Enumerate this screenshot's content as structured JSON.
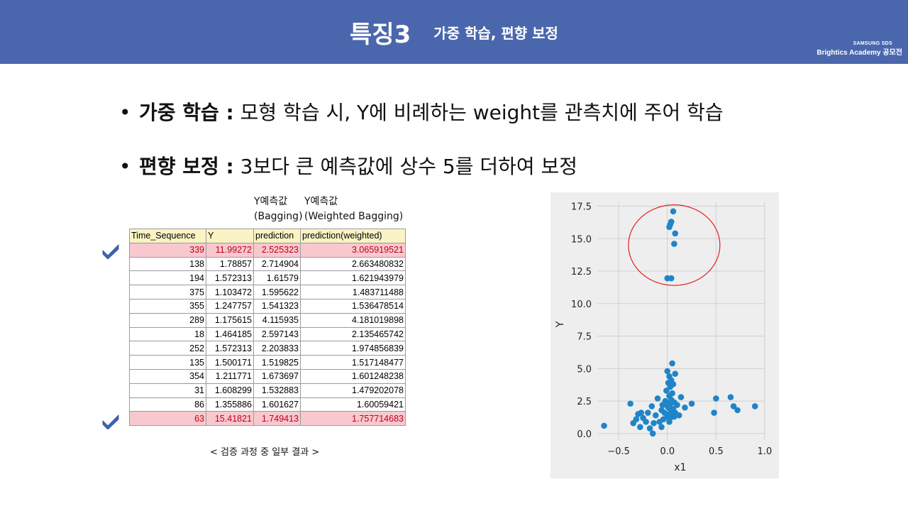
{
  "header": {
    "title": "특징3",
    "subtitle": "가중 학습, 편향 보정",
    "brand_line1": "SAMSUNG SDS",
    "brand_line2": "Brightics Academy 공모전",
    "bg_color": "#4a67ad"
  },
  "bullets": [
    {
      "term": "가중 학습 :",
      "text": " 모형 학습 시, Y에 비례하는 weight를 관측치에 주어 학습"
    },
    {
      "term": "편향 보정 :",
      "text": " 3보다 큰 예측값에 상수 5를 더하여 보정"
    }
  ],
  "column_labels": {
    "bagging_line1": "Y예측값",
    "bagging_line2": "(Bagging)",
    "weighted_line1": "Y예측값",
    "weighted_line2": "(Weighted Bagging)"
  },
  "table": {
    "headers": [
      "Time_Sequence",
      "Y",
      "prediction",
      "prediction(weighted)"
    ],
    "rows": [
      [
        "339",
        "11.99272",
        "2.525323",
        "3.065919521"
      ],
      [
        "138",
        "1.78857",
        "2.714904",
        "2.663480832"
      ],
      [
        "194",
        "1.572313",
        "1.61579",
        "1.621943979"
      ],
      [
        "375",
        "1.103472",
        "1.595622",
        "1.483711488"
      ],
      [
        "355",
        "1.247757",
        "1.541323",
        "1.536478514"
      ],
      [
        "289",
        "1.175615",
        "4.115935",
        "4.181019898"
      ],
      [
        "18",
        "1.464185",
        "2.597143",
        "2.135465742"
      ],
      [
        "252",
        "1.572313",
        "2.203833",
        "1.974856839"
      ],
      [
        "135",
        "1.500171",
        "1.519825",
        "1.517148477"
      ],
      [
        "354",
        "1.211771",
        "1.673697",
        "1.601248238"
      ],
      [
        "31",
        "1.608299",
        "1.532883",
        "1.479202078"
      ],
      [
        "86",
        "1.355886",
        "1.601627",
        "1.60059421"
      ],
      [
        "63",
        "15.41821",
        "1.749413",
        "1.757714683"
      ]
    ],
    "highlight_rows": [
      0,
      12
    ],
    "highlight_color": "#f7c9cf",
    "highlight_text_color": "#c0001a",
    "header_color": "#fbf3c4",
    "check_icon": "checkmark-icon",
    "check_color": "#3a66b5"
  },
  "caption": "< 검증 과정 중 일부 결과 >",
  "chart_data": {
    "type": "scatter",
    "xlabel": "x1",
    "ylabel": "Y",
    "xlim": [
      -0.72,
      1.0
    ],
    "ylim": [
      -0.5,
      17.8
    ],
    "xticks": [
      -0.5,
      0.0,
      0.5,
      1.0
    ],
    "xtick_labels": [
      "−0.5",
      "0.0",
      "0.5",
      "1.0"
    ],
    "yticks": [
      0.0,
      2.5,
      5.0,
      7.5,
      10.0,
      12.5,
      15.0,
      17.5
    ],
    "ytick_labels": [
      "0.0",
      "2.5",
      "5.0",
      "7.5",
      "10.0",
      "12.5",
      "15.0",
      "17.5"
    ],
    "grid": true,
    "point_color": "#1f85c9",
    "background": "#eeeeee",
    "highlight_circle_color": "#e02020",
    "highlight_circle": {
      "cx": 0.07,
      "cy": 14.5,
      "rx": 0.47,
      "ry": 3.1
    },
    "points": [
      [
        0.06,
        17.1
      ],
      [
        0.04,
        16.3
      ],
      [
        0.03,
        16.1
      ],
      [
        0.02,
        15.9
      ],
      [
        0.08,
        15.4
      ],
      [
        0.07,
        14.6
      ],
      [
        0.0,
        11.95
      ],
      [
        0.04,
        11.95
      ],
      [
        -0.65,
        0.6
      ],
      [
        -0.38,
        2.3
      ],
      [
        -0.35,
        0.8
      ],
      [
        -0.3,
        1.5
      ],
      [
        -0.28,
        0.5
      ],
      [
        -0.25,
        1.2
      ],
      [
        -0.22,
        0.9
      ],
      [
        -0.2,
        1.6
      ],
      [
        -0.18,
        0.4
      ],
      [
        -0.16,
        2.1
      ],
      [
        -0.14,
        0.8
      ],
      [
        -0.12,
        1.4
      ],
      [
        -0.1,
        2.7
      ],
      [
        -0.08,
        0.9
      ],
      [
        -0.06,
        1.8
      ],
      [
        -0.05,
        2.2
      ],
      [
        -0.04,
        1.1
      ],
      [
        -0.03,
        1.6
      ],
      [
        -0.02,
        2.5
      ],
      [
        -0.01,
        3.3
      ],
      [
        0.0,
        1.3
      ],
      [
        0.0,
        4.8
      ],
      [
        0.01,
        2.0
      ],
      [
        0.01,
        3.9
      ],
      [
        0.02,
        1.5
      ],
      [
        0.02,
        2.9
      ],
      [
        0.02,
        4.4
      ],
      [
        0.03,
        1.2
      ],
      [
        0.03,
        2.3
      ],
      [
        0.03,
        3.6
      ],
      [
        0.04,
        1.7
      ],
      [
        0.04,
        2.6
      ],
      [
        0.04,
        4.1
      ],
      [
        0.05,
        1.4
      ],
      [
        0.05,
        3.1
      ],
      [
        0.05,
        5.4
      ],
      [
        0.06,
        1.9
      ],
      [
        0.06,
        3.8
      ],
      [
        0.07,
        1.3
      ],
      [
        0.07,
        2.4
      ],
      [
        0.08,
        1.6
      ],
      [
        0.08,
        4.6
      ],
      [
        0.1,
        2.2
      ],
      [
        0.12,
        1.4
      ],
      [
        0.14,
        2.8
      ],
      [
        0.18,
        2.0
      ],
      [
        0.25,
        2.3
      ],
      [
        0.48,
        1.6
      ],
      [
        0.5,
        2.7
      ],
      [
        0.65,
        2.8
      ],
      [
        0.68,
        2.1
      ],
      [
        0.72,
        1.8
      ],
      [
        0.9,
        2.1
      ],
      [
        -0.15,
        0.0
      ],
      [
        -0.27,
        1.6
      ],
      [
        -0.32,
        1.1
      ],
      [
        0.02,
        0.9
      ],
      [
        -0.06,
        0.5
      ],
      [
        0.0,
        2.1
      ],
      [
        0.03,
        1.9
      ]
    ]
  }
}
